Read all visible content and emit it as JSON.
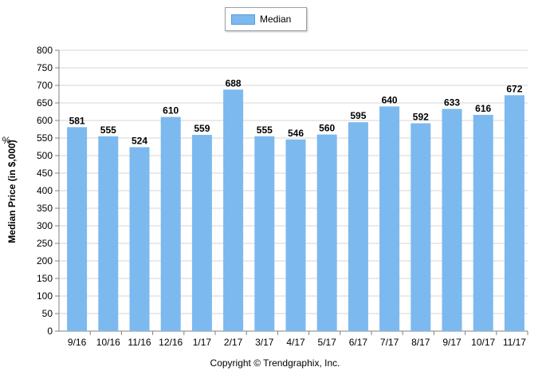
{
  "chart_data": {
    "type": "bar",
    "title": "",
    "xlabel": "",
    "ylabel": "Median Price (in $,000)",
    "ylabel_unit": "%",
    "ylim": [
      0,
      800
    ],
    "yticks": [
      0,
      50,
      100,
      150,
      200,
      250,
      300,
      350,
      400,
      450,
      500,
      550,
      600,
      650,
      700,
      750,
      800
    ],
    "grid": true,
    "legend_position": "top-center",
    "categories": [
      "9/16",
      "10/16",
      "11/16",
      "12/16",
      "1/17",
      "2/17",
      "3/17",
      "4/17",
      "5/17",
      "6/17",
      "7/17",
      "8/17",
      "9/17",
      "10/17",
      "11/17"
    ],
    "series": [
      {
        "name": "Median",
        "color": "#7cb9ef",
        "values": [
          581,
          555,
          524,
          610,
          559,
          688,
          555,
          546,
          560,
          595,
          640,
          592,
          633,
          616,
          672
        ]
      }
    ]
  },
  "footer": {
    "copyright": "Copyright © Trendgraphix, Inc."
  }
}
